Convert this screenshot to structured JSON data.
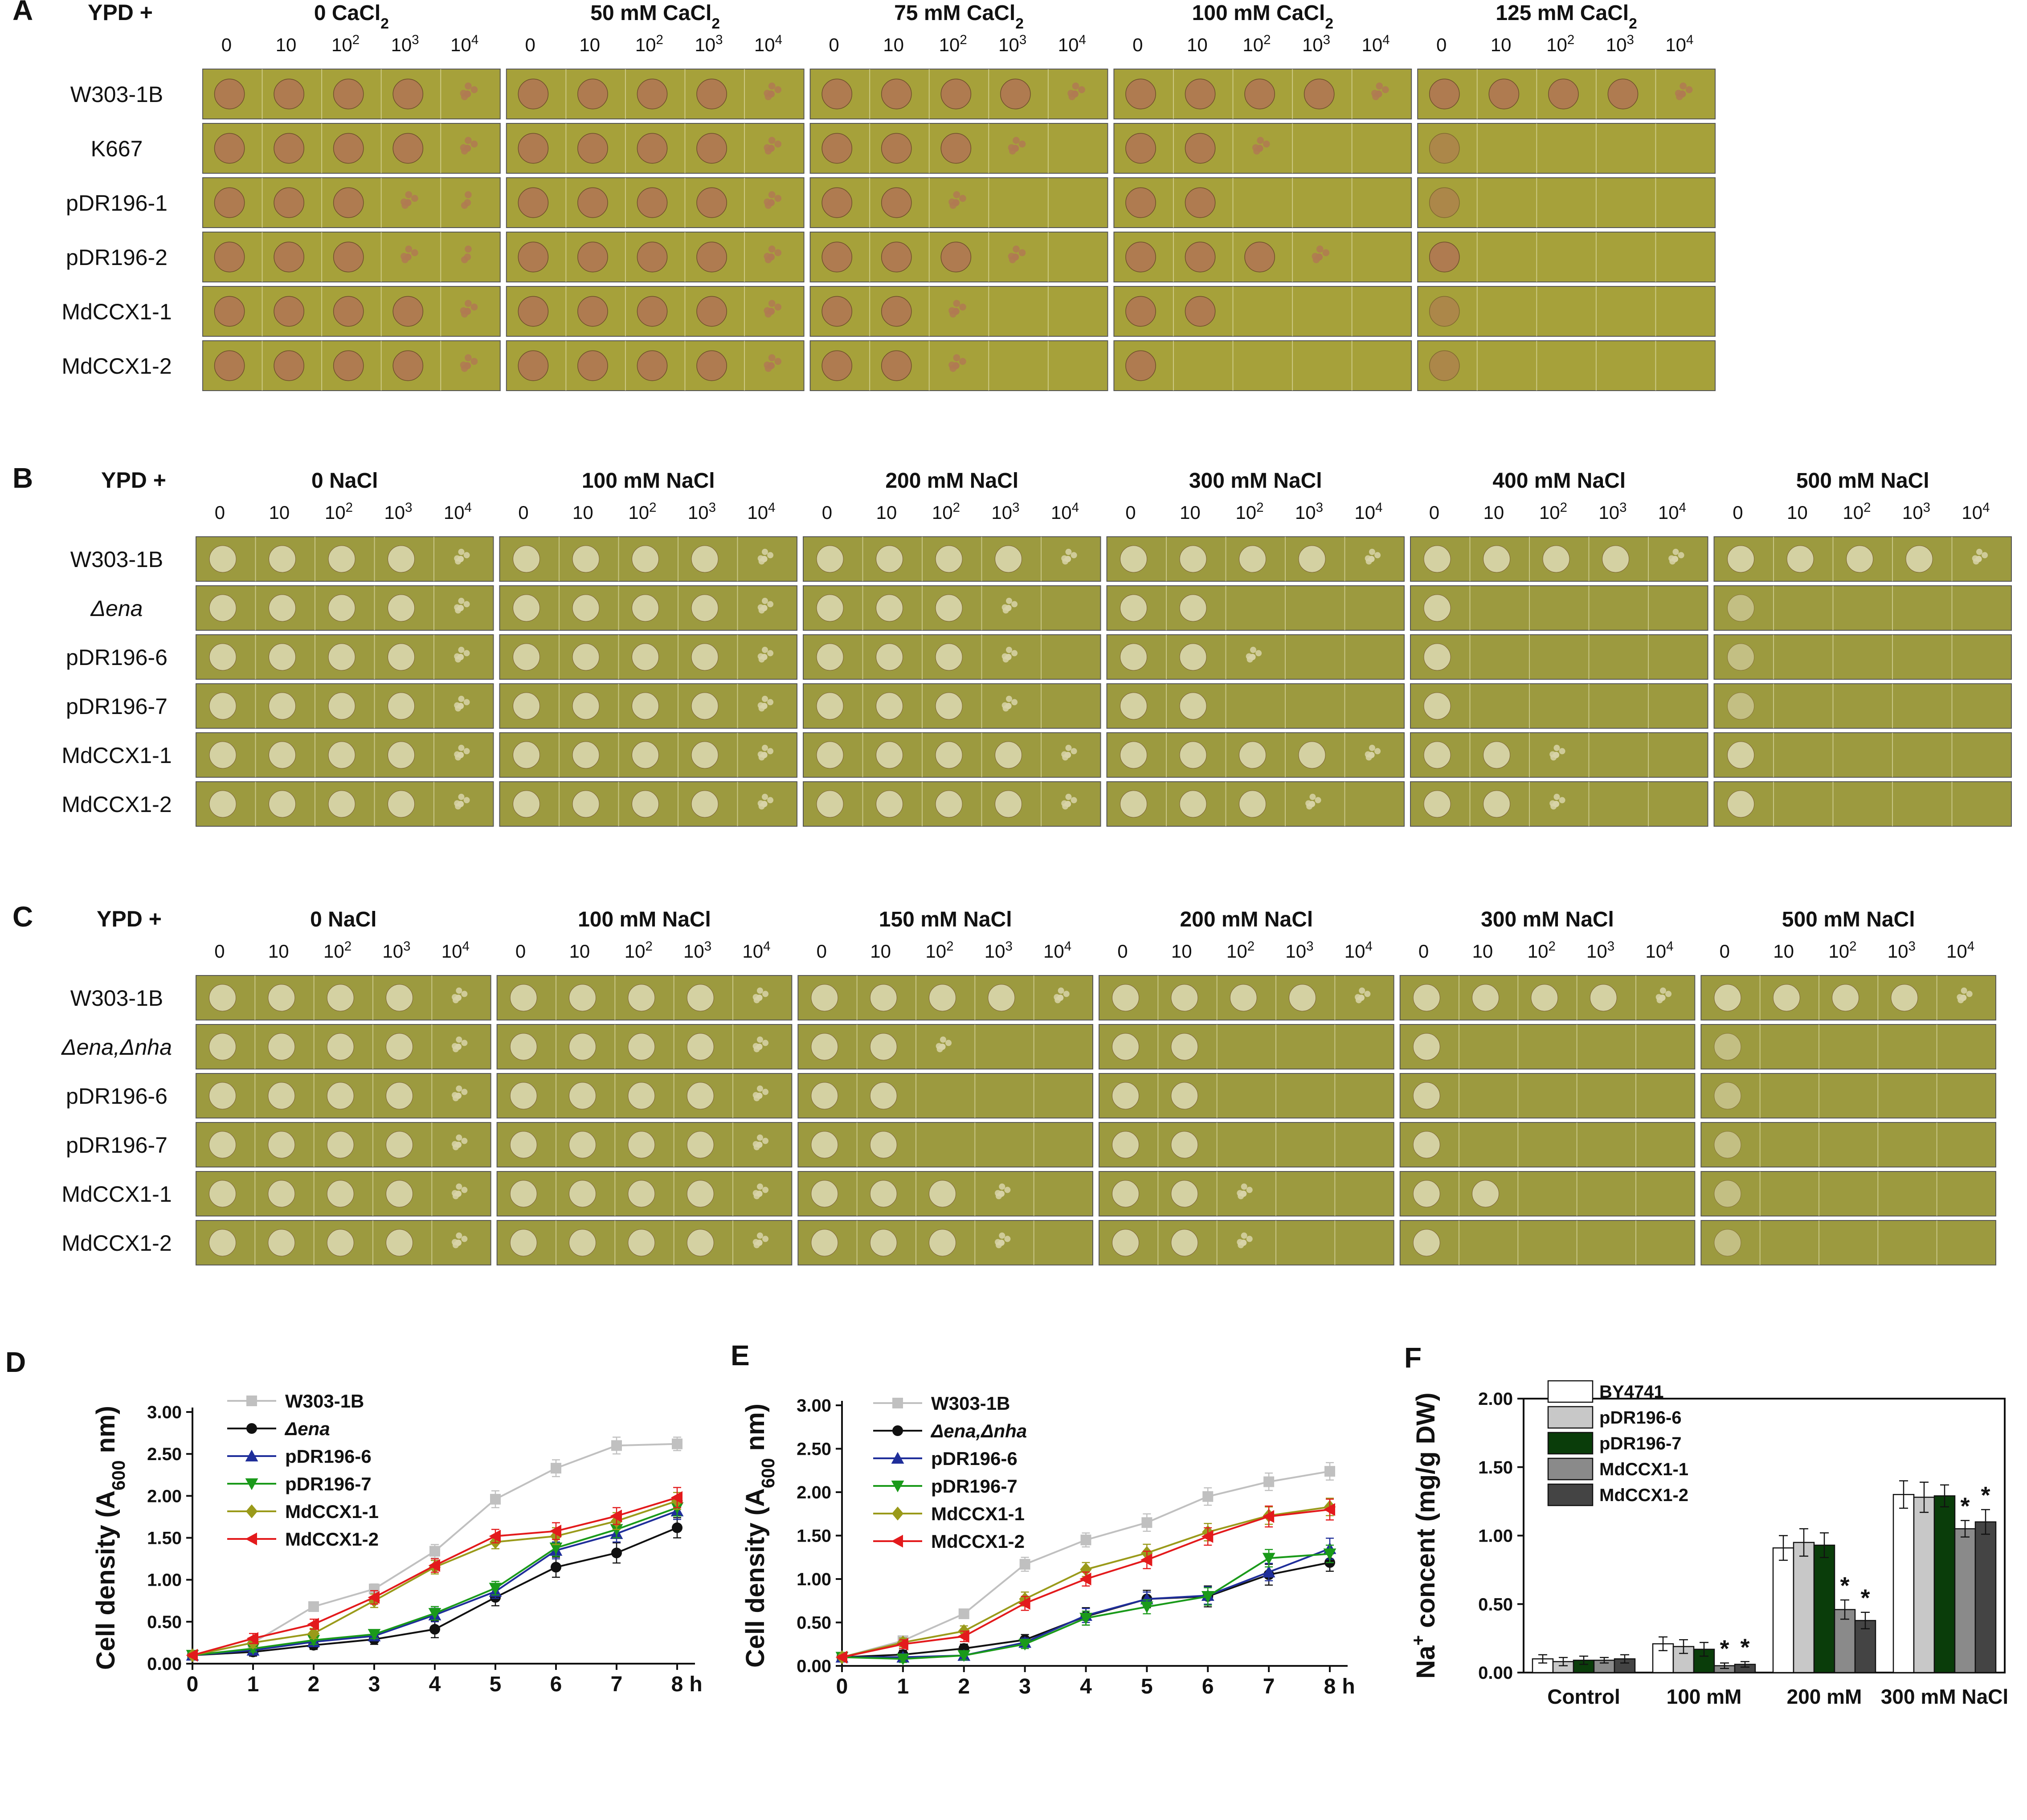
{
  "figure": {
    "panel_labels": [
      "A",
      "B",
      "C",
      "D",
      "E",
      "F"
    ],
    "dilutions": [
      "0",
      "10",
      "10",
      "10",
      "10"
    ],
    "dilution_exponents": [
      "",
      "",
      "2",
      "3",
      "4"
    ],
    "colors": {
      "plate_agar_A": "#a6a13a",
      "plate_agar_BC": "#9c9a3f",
      "colony_A": "#b07a52",
      "colony_BC": "#d8d4a8",
      "grey": "#c0c0c0",
      "black": "#111111",
      "blue": "#1f2e9a",
      "green": "#1a9a1a",
      "olive": "#9a9a1a",
      "red": "#e31a1c"
    }
  },
  "panel_A": {
    "label": "A",
    "ypd": "YPD +",
    "conditions": [
      {
        "text": "0 CaCl",
        "sub": "2"
      },
      {
        "text": "50 mM CaCl",
        "sub": "2"
      },
      {
        "text": "75 mM CaCl",
        "sub": "2"
      },
      {
        "text": "100 mM CaCl",
        "sub": "2"
      },
      {
        "text": "125 mM CaCl",
        "sub": "2"
      }
    ],
    "strains": [
      "W303-1B",
      "K667",
      "pDR196-1",
      "pDR196-2",
      "MdCCX1-1",
      "MdCCX1-2"
    ],
    "growth": [
      [
        5,
        5,
        5,
        5,
        5
      ],
      [
        5,
        5,
        4,
        3,
        0.5
      ],
      [
        4.5,
        5,
        3,
        2,
        0.5
      ],
      [
        4.5,
        5,
        4,
        4,
        1
      ],
      [
        5,
        5,
        3,
        2,
        0.5
      ],
      [
        5,
        5,
        3,
        1,
        0.5
      ]
    ]
  },
  "panel_B": {
    "label": "B",
    "ypd": "YPD +",
    "conditions": [
      "0 NaCl",
      "100 mM NaCl",
      "200 mM NaCl",
      "300 mM NaCl",
      "400 mM NaCl",
      "500 mM NaCl"
    ],
    "strains": [
      "W303-1B",
      "Δena",
      "pDR196-6",
      "pDR196-7",
      "MdCCX1-1",
      "MdCCX1-2"
    ],
    "italic_strains": [
      false,
      true,
      false,
      false,
      false,
      false
    ],
    "growth": [
      [
        5,
        5,
        5,
        5,
        5,
        5
      ],
      [
        5,
        5,
        4,
        2,
        1,
        0.5
      ],
      [
        5,
        5,
        4,
        3,
        1,
        0.5
      ],
      [
        5,
        5,
        4,
        2,
        1,
        0.5
      ],
      [
        5,
        5,
        5,
        5,
        3,
        1
      ],
      [
        5,
        5,
        5,
        4,
        3,
        1
      ]
    ]
  },
  "panel_C": {
    "label": "C",
    "ypd": "YPD +",
    "conditions": [
      "0 NaCl",
      "100 mM NaCl",
      "150 mM NaCl",
      "200 mM NaCl",
      "300 mM NaCl",
      "500 mM NaCl"
    ],
    "strains": [
      "W303-1B",
      "Δena,Δnha",
      "pDR196-6",
      "pDR196-7",
      "MdCCX1-1",
      "MdCCX1-2"
    ],
    "italic_strains": [
      false,
      true,
      false,
      false,
      false,
      false
    ],
    "growth": [
      [
        5,
        5,
        5,
        5,
        5,
        5
      ],
      [
        5,
        5,
        3,
        2,
        1,
        0.5
      ],
      [
        5,
        5,
        2,
        2,
        1,
        0.5
      ],
      [
        5,
        5,
        2,
        2,
        1,
        0.5
      ],
      [
        5,
        5,
        4,
        3,
        2,
        0.5
      ],
      [
        5,
        5,
        4,
        3,
        1,
        0.5
      ]
    ]
  },
  "chart_data": [
    {
      "panel": "D",
      "type": "line",
      "title": "",
      "ylabel": "Cell density (A600 nm)",
      "ylabel_parts": [
        "Cell density (A",
        "600",
        " nm)"
      ],
      "xlabel": "h",
      "x": [
        0,
        1,
        2,
        3,
        4,
        5,
        6,
        7,
        8
      ],
      "ylim": [
        0,
        3
      ],
      "yticks": [
        "0.00",
        "0.50",
        "1.00",
        "1.50",
        "2.00",
        "2.50",
        "3.00"
      ],
      "xticks": [
        "0",
        "1",
        "2",
        "3",
        "4",
        "5",
        "6",
        "7",
        "8"
      ],
      "legend": "top-left",
      "series": [
        {
          "name": "W303-1B",
          "italic": false,
          "color": "#c0c0c0",
          "marker": "square",
          "values": [
            0.1,
            0.25,
            0.68,
            0.89,
            1.34,
            1.96,
            2.33,
            2.6,
            2.62
          ],
          "errors": [
            0.02,
            0.06,
            0.05,
            0.06,
            0.08,
            0.1,
            0.1,
            0.1,
            0.08
          ]
        },
        {
          "name": "Δena",
          "italic": true,
          "color": "#111111",
          "marker": "circle",
          "values": [
            0.1,
            0.14,
            0.22,
            0.29,
            0.41,
            0.79,
            1.15,
            1.32,
            1.62
          ],
          "errors": [
            0.02,
            0.05,
            0.05,
            0.06,
            0.1,
            0.1,
            0.12,
            0.12,
            0.12
          ]
        },
        {
          "name": "pDR196-6",
          "italic": false,
          "color": "#1f2e9a",
          "marker": "triangle-up",
          "values": [
            0.1,
            0.16,
            0.26,
            0.33,
            0.58,
            0.86,
            1.35,
            1.55,
            1.82
          ],
          "errors": [
            0.02,
            0.04,
            0.05,
            0.05,
            0.08,
            0.08,
            0.1,
            0.1,
            0.1
          ]
        },
        {
          "name": "pDR196-7",
          "italic": false,
          "color": "#1a9a1a",
          "marker": "triangle-down",
          "values": [
            0.1,
            0.18,
            0.28,
            0.35,
            0.6,
            0.9,
            1.38,
            1.6,
            1.86
          ],
          "errors": [
            0.02,
            0.04,
            0.05,
            0.05,
            0.08,
            0.08,
            0.1,
            0.1,
            0.1
          ]
        },
        {
          "name": "MdCCX1-1",
          "italic": false,
          "color": "#9a9a1a",
          "marker": "diamond",
          "values": [
            0.1,
            0.25,
            0.36,
            0.75,
            1.15,
            1.45,
            1.52,
            1.7,
            1.94
          ],
          "errors": [
            0.02,
            0.06,
            0.06,
            0.08,
            0.08,
            0.08,
            0.1,
            0.1,
            0.1
          ]
        },
        {
          "name": "MdCCX1-2",
          "italic": false,
          "color": "#e31a1c",
          "marker": "triangle-left",
          "values": [
            0.1,
            0.3,
            0.47,
            0.79,
            1.17,
            1.52,
            1.58,
            1.76,
            1.98
          ],
          "errors": [
            0.02,
            0.06,
            0.06,
            0.08,
            0.08,
            0.08,
            0.1,
            0.1,
            0.12
          ]
        }
      ]
    },
    {
      "panel": "E",
      "type": "line",
      "title": "",
      "ylabel": "Cell density (A600 nm)",
      "ylabel_parts": [
        "Cell density (A",
        "600",
        " nm)"
      ],
      "xlabel": "h",
      "x": [
        0,
        1,
        2,
        3,
        4,
        5,
        6,
        7,
        8
      ],
      "ylim": [
        0,
        3
      ],
      "yticks": [
        "0.00",
        "0.50",
        "1.00",
        "1.50",
        "2.00",
        "2.50",
        "3.00"
      ],
      "xticks": [
        "0",
        "1",
        "2",
        "3",
        "4",
        "5",
        "6",
        "7",
        "8"
      ],
      "legend": "top-left",
      "series": [
        {
          "name": "W303-1B",
          "italic": false,
          "color": "#c0c0c0",
          "marker": "square",
          "values": [
            0.1,
            0.29,
            0.6,
            1.17,
            1.45,
            1.65,
            1.95,
            2.12,
            2.24
          ],
          "errors": [
            0.02,
            0.05,
            0.05,
            0.08,
            0.08,
            0.1,
            0.1,
            0.1,
            0.1
          ]
        },
        {
          "name": "Δena,Δnha",
          "italic": true,
          "color": "#111111",
          "marker": "circle",
          "values": [
            0.1,
            0.13,
            0.2,
            0.3,
            0.57,
            0.77,
            0.8,
            1.05,
            1.19
          ],
          "errors": [
            0.02,
            0.05,
            0.05,
            0.06,
            0.1,
            0.1,
            0.12,
            0.12,
            0.1
          ]
        },
        {
          "name": "pDR196-6",
          "italic": false,
          "color": "#1f2e9a",
          "marker": "triangle-up",
          "values": [
            0.1,
            0.1,
            0.12,
            0.27,
            0.58,
            0.77,
            0.81,
            1.08,
            1.35
          ],
          "errors": [
            0.02,
            0.04,
            0.05,
            0.05,
            0.08,
            0.08,
            0.1,
            0.1,
            0.12
          ]
        },
        {
          "name": "pDR196-7",
          "italic": false,
          "color": "#1a9a1a",
          "marker": "triangle-down",
          "values": [
            0.1,
            0.08,
            0.12,
            0.25,
            0.55,
            0.68,
            0.8,
            1.24,
            1.29
          ],
          "errors": [
            0.02,
            0.04,
            0.05,
            0.05,
            0.08,
            0.08,
            0.1,
            0.1,
            0.1
          ]
        },
        {
          "name": "MdCCX1-1",
          "italic": false,
          "color": "#9a9a1a",
          "marker": "diamond",
          "values": [
            0.1,
            0.27,
            0.4,
            0.77,
            1.11,
            1.3,
            1.54,
            1.73,
            1.83
          ],
          "errors": [
            0.02,
            0.05,
            0.06,
            0.08,
            0.08,
            0.1,
            0.1,
            0.1,
            0.1
          ]
        },
        {
          "name": "MdCCX1-2",
          "italic": false,
          "color": "#e31a1c",
          "marker": "triangle-left",
          "values": [
            0.1,
            0.25,
            0.34,
            0.72,
            1.0,
            1.22,
            1.49,
            1.72,
            1.8
          ],
          "errors": [
            0.02,
            0.05,
            0.06,
            0.08,
            0.08,
            0.1,
            0.1,
            0.12,
            0.12
          ]
        }
      ]
    },
    {
      "panel": "F",
      "type": "bar",
      "title": "",
      "ylabel": "Na+ concent (mg/g DW)",
      "ylabel_parts": [
        "Na",
        "+",
        " concent (mg/g DW)"
      ],
      "xlabel": "",
      "categories": [
        "Control",
        "100 mM",
        "200 mM",
        "300 mM  NaCl"
      ],
      "ylim": [
        0,
        2
      ],
      "yticks": [
        "0.00",
        "0.50",
        "1.00",
        "1.50",
        "2.00"
      ],
      "legend": "top-left",
      "series": [
        {
          "name": "BY4741",
          "color": "#ffffff",
          "values": [
            0.1,
            0.21,
            0.91,
            1.3
          ],
          "errors": [
            0.03,
            0.05,
            0.09,
            0.1
          ],
          "sig": [
            false,
            false,
            false,
            false
          ]
        },
        {
          "name": "pDR196-6",
          "color": "#c8c8c8",
          "values": [
            0.08,
            0.19,
            0.95,
            1.28
          ],
          "errors": [
            0.03,
            0.05,
            0.1,
            0.11
          ],
          "sig": [
            false,
            false,
            false,
            false
          ]
        },
        {
          "name": "pDR196-7",
          "color": "#0a3d0a",
          "values": [
            0.09,
            0.17,
            0.93,
            1.29
          ],
          "errors": [
            0.03,
            0.05,
            0.09,
            0.08
          ],
          "sig": [
            false,
            false,
            false,
            false
          ]
        },
        {
          "name": "MdCCX1-1",
          "color": "#8a8a8a",
          "values": [
            0.09,
            0.05,
            0.46,
            1.05
          ],
          "errors": [
            0.02,
            0.02,
            0.07,
            0.06
          ],
          "sig": [
            false,
            true,
            true,
            true
          ]
        },
        {
          "name": "MdCCX1-2",
          "color": "#444444",
          "values": [
            0.1,
            0.06,
            0.38,
            1.1
          ],
          "errors": [
            0.03,
            0.02,
            0.06,
            0.09
          ],
          "sig": [
            false,
            true,
            true,
            true
          ]
        }
      ],
      "sig_symbol": "*"
    }
  ]
}
